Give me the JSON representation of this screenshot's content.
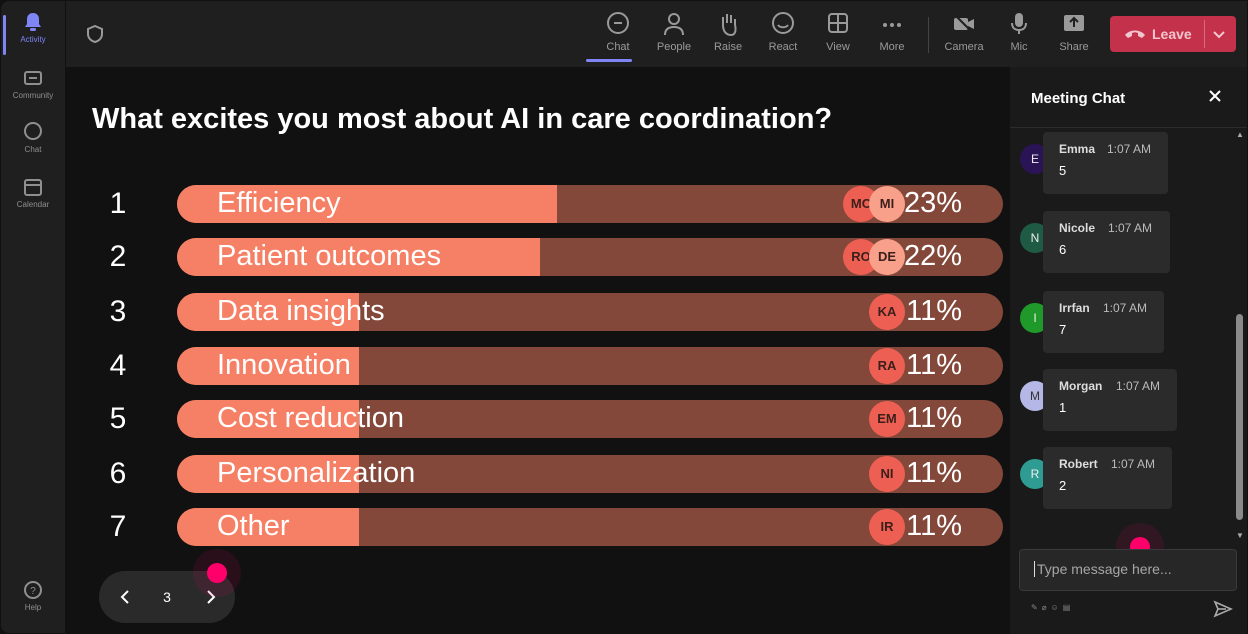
{
  "rail": {
    "items": [
      {
        "label": "Activity",
        "icon": "bell-icon"
      },
      {
        "label": "Community",
        "icon": "community-icon"
      },
      {
        "label": "Chat",
        "icon": "chat-icon"
      },
      {
        "label": "Calendar",
        "icon": "calendar-icon"
      }
    ],
    "help_label": "Help"
  },
  "toolbar": {
    "buttons": [
      {
        "label": "Chat",
        "icon": "chat-icon"
      },
      {
        "label": "People",
        "icon": "people-icon"
      },
      {
        "label": "Raise",
        "icon": "hand-icon"
      },
      {
        "label": "React",
        "icon": "smiley-icon"
      },
      {
        "label": "View",
        "icon": "grid-icon"
      },
      {
        "label": "More",
        "icon": "more-icon"
      },
      {
        "label": "Camera",
        "icon": "camera-off-icon"
      },
      {
        "label": "Mic",
        "icon": "mic-icon"
      },
      {
        "label": "Share",
        "icon": "share-icon"
      }
    ],
    "leave_label": "Leave"
  },
  "poll": {
    "question": "What excites you most about AI in care coordination?",
    "options": [
      {
        "num": "1",
        "label": "Efficiency",
        "pct_label": "23%",
        "share": 0.23,
        "avatars": [
          "MC",
          "MI"
        ]
      },
      {
        "num": "2",
        "label": "Patient outcomes",
        "pct_label": "22%",
        "share": 0.22,
        "avatars": [
          "RO",
          "DE"
        ]
      },
      {
        "num": "3",
        "label": "Data insights",
        "pct_label": "11%",
        "share": 0.11,
        "avatars": [
          "KA"
        ]
      },
      {
        "num": "4",
        "label": "Innovation",
        "pct_label": "11%",
        "share": 0.11,
        "avatars": [
          "RA"
        ]
      },
      {
        "num": "5",
        "label": "Cost reduction",
        "pct_label": "11%",
        "share": 0.11,
        "avatars": [
          "EM"
        ]
      },
      {
        "num": "6",
        "label": "Personalization",
        "pct_label": "11%",
        "share": 0.11,
        "avatars": [
          "NI"
        ]
      },
      {
        "num": "7",
        "label": "Other",
        "pct_label": "11%",
        "share": 0.11,
        "avatars": [
          "IR"
        ]
      }
    ],
    "page": "3"
  },
  "chat": {
    "title": "Meeting Chat",
    "messages": [
      {
        "initial": "E",
        "name": "Emma",
        "time": "1:07 AM",
        "text": "5",
        "avatar_color": "#2a1456"
      },
      {
        "initial": "N",
        "name": "Nicole",
        "time": "1:07 AM",
        "text": "6",
        "avatar_color": "#1f5a45"
      },
      {
        "initial": "I",
        "name": "Irrfan",
        "time": "1:07 AM",
        "text": "7",
        "avatar_color": "#1f9a2a"
      },
      {
        "initial": "M",
        "name": "Morgan",
        "time": "1:07 AM",
        "text": "1",
        "avatar_color": "#b5b7e6"
      },
      {
        "initial": "R",
        "name": "Robert",
        "time": "1:07 AM",
        "text": "2",
        "avatar_color": "#2f9c93"
      }
    ],
    "input_placeholder": "Type message here..."
  },
  "colors": {
    "accent": "#7f85f5",
    "leave": "#c4314b",
    "bar_fill": "#f58065",
    "bar_track": "#83483a",
    "pointer_dot": "#ff006b"
  }
}
